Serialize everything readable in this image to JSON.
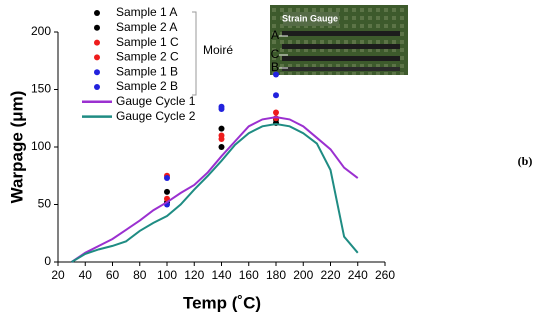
{
  "chart_data": {
    "type": "line",
    "xlabel": "Temp (˚C)",
    "ylabel": "Warpage (μm)",
    "xlim": [
      20,
      260
    ],
    "xticks": [
      20,
      40,
      60,
      80,
      100,
      120,
      140,
      160,
      180,
      200,
      220,
      240,
      260
    ],
    "ylim": [
      0,
      200
    ],
    "yticks": [
      0,
      50,
      100,
      150,
      200
    ],
    "legend": "upper left",
    "series": [
      {
        "name": "Sample 1 A",
        "type": "scatter",
        "color": "#000000",
        "x": [
          100,
          140,
          180
        ],
        "values": [
          61,
          116,
          124
        ]
      },
      {
        "name": "Sample 2 A",
        "type": "scatter",
        "color": "#000000",
        "x": [
          100,
          140,
          180
        ],
        "values": [
          52,
          100,
          121
        ]
      },
      {
        "name": "Sample 1 C",
        "type": "scatter",
        "color": "#ee1c1c",
        "x": [
          100,
          140,
          180
        ],
        "values": [
          75,
          110,
          130
        ]
      },
      {
        "name": "Sample 2 C",
        "type": "scatter",
        "color": "#ee1c1c",
        "x": [
          100,
          140,
          180
        ],
        "values": [
          55,
          107,
          125
        ]
      },
      {
        "name": "Sample 1 B",
        "type": "scatter",
        "color": "#2222dd",
        "x": [
          100,
          140,
          180
        ],
        "values": [
          73,
          135,
          163
        ]
      },
      {
        "name": "Sample 2 B",
        "type": "scatter",
        "color": "#2222dd",
        "x": [
          100,
          140,
          180
        ],
        "values": [
          50,
          133,
          145
        ]
      },
      {
        "name": "Gauge Cycle 1",
        "type": "line",
        "color": "#9b30d0",
        "x": [
          30,
          40,
          50,
          60,
          70,
          80,
          90,
          100,
          110,
          120,
          130,
          140,
          150,
          160,
          170,
          180,
          190,
          200,
          210,
          220,
          230,
          240
        ],
        "values": [
          0,
          8,
          14,
          20,
          28,
          36,
          45,
          52,
          60,
          67,
          78,
          92,
          105,
          118,
          124,
          126,
          124,
          118,
          108,
          98,
          82,
          73
        ]
      },
      {
        "name": "Gauge Cycle 2",
        "type": "line",
        "color": "#1f8c83",
        "x": [
          30,
          40,
          50,
          60,
          70,
          80,
          90,
          100,
          110,
          120,
          130,
          140,
          150,
          160,
          170,
          180,
          190,
          200,
          210,
          220,
          230,
          240
        ],
        "values": [
          0,
          7,
          11,
          14,
          18,
          27,
          34,
          40,
          50,
          63,
          75,
          88,
          102,
          112,
          118,
          120,
          118,
          112,
          103,
          80,
          22,
          8
        ]
      }
    ],
    "annotations": {
      "group_label": "Moiré",
      "panel_label": "(b)",
      "inset_title": "Strain Gauge",
      "inset_labels": [
        "A",
        "C",
        "B"
      ]
    }
  }
}
